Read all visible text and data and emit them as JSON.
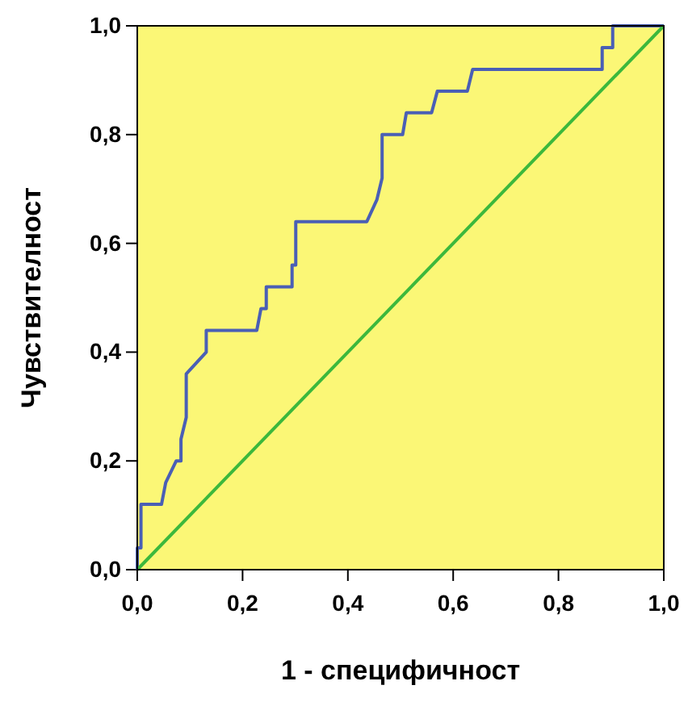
{
  "chart_data": {
    "type": "line",
    "xlabel": "1 - специфичност",
    "ylabel": "Чувствителност",
    "xlim": [
      0,
      1
    ],
    "ylim": [
      0,
      1
    ],
    "xticks": [
      {
        "value": 0,
        "label": "0,0"
      },
      {
        "value": 0.2,
        "label": "0,2"
      },
      {
        "value": 0.4,
        "label": "0,4"
      },
      {
        "value": 0.6,
        "label": "0,6"
      },
      {
        "value": 0.8,
        "label": "0,8"
      },
      {
        "value": 1,
        "label": "1,0"
      }
    ],
    "yticks": [
      {
        "value": 0,
        "label": "0,0"
      },
      {
        "value": 0.2,
        "label": "0,2"
      },
      {
        "value": 0.4,
        "label": "0,4"
      },
      {
        "value": 0.6,
        "label": "0,6"
      },
      {
        "value": 0.8,
        "label": "0,8"
      },
      {
        "value": 1,
        "label": "1,0"
      }
    ],
    "grid": false,
    "marker": "none",
    "line_style": "solid",
    "series": [
      {
        "color": "#4a5fb5",
        "x": [
          0,
          0,
          0.007,
          0.007,
          0.046,
          0.054,
          0.074,
          0.083,
          0.083,
          0.093,
          0.093,
          0.131,
          0.131,
          0.227,
          0.235,
          0.245,
          0.245,
          0.294,
          0.294,
          0.301,
          0.301,
          0.436,
          0.455,
          0.465,
          0.465,
          0.504,
          0.511,
          0.559,
          0.57,
          0.627,
          0.637,
          0.883,
          0.883,
          0.903,
          0.903,
          1
        ],
        "values": [
          0,
          0.04,
          0.04,
          0.12,
          0.12,
          0.16,
          0.2,
          0.2,
          0.24,
          0.28,
          0.36,
          0.4,
          0.44,
          0.44,
          0.48,
          0.48,
          0.52,
          0.52,
          0.56,
          0.56,
          0.64,
          0.64,
          0.68,
          0.72,
          0.8,
          0.8,
          0.84,
          0.84,
          0.88,
          0.88,
          0.92,
          0.92,
          0.96,
          0.96,
          1,
          1
        ]
      },
      {
        "color": "#3cb83c",
        "x": [
          0,
          1
        ],
        "values": [
          0,
          1
        ]
      }
    ]
  }
}
